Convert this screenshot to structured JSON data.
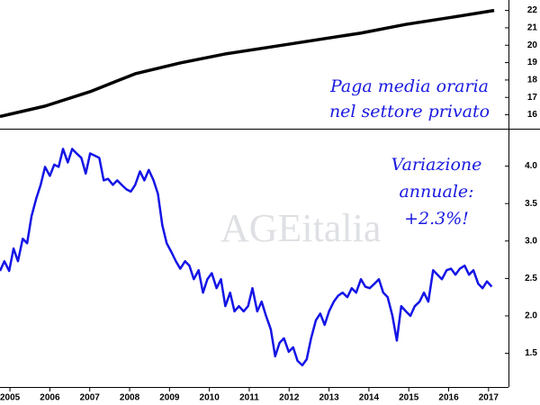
{
  "chart_data": [
    {
      "type": "line",
      "annotation": [
        "Paga media oraria",
        "nel settore privato"
      ],
      "xlim": [
        2004.75,
        2017.5
      ],
      "ylim": [
        15.2,
        22.6
      ],
      "yticks": [
        16,
        17,
        18,
        19,
        20,
        21,
        22
      ],
      "series": [
        {
          "color": "#000000",
          "x": [
            2004.75,
            2005.88,
            2007.01,
            2008.14,
            2009.27,
            2010.4,
            2011.54,
            2012.67,
            2013.8,
            2014.93,
            2016.06,
            2017.14
          ],
          "values": [
            15.9,
            16.5,
            17.33,
            18.36,
            18.98,
            19.5,
            19.9,
            20.3,
            20.7,
            21.2,
            21.6,
            22.0
          ]
        }
      ]
    },
    {
      "type": "line",
      "annotation": [
        "Variazione",
        "annuale:",
        "+2.3%!"
      ],
      "watermark": "AGEitalia",
      "xlim": [
        2004.75,
        2017.5
      ],
      "xticks": [
        2005,
        2006,
        2007,
        2008,
        2009,
        2010,
        2011,
        2012,
        2013,
        2014,
        2015,
        2016,
        2017
      ],
      "ylim": [
        1.05,
        4.5
      ],
      "yticks": [
        1.5,
        {
          "value": 2,
          "label": "2.0"
        },
        2.5,
        {
          "value": 3,
          "label": "3.0"
        },
        3.5,
        {
          "value": 4,
          "label": "4.0"
        }
      ],
      "series": [
        {
          "color": "#1414e6",
          "x": [
            2004.75,
            2004.86,
            2004.98,
            2005.09,
            2005.2,
            2005.32,
            2005.43,
            2005.54,
            2005.66,
            2005.77,
            2005.88,
            2006.0,
            2006.11,
            2006.22,
            2006.33,
            2006.45,
            2006.56,
            2006.67,
            2006.79,
            2006.9,
            2007.01,
            2007.13,
            2007.24,
            2007.35,
            2007.46,
            2007.58,
            2007.69,
            2007.8,
            2007.92,
            2008.03,
            2008.14,
            2008.26,
            2008.37,
            2008.48,
            2008.6,
            2008.71,
            2008.82,
            2008.93,
            2009.05,
            2009.16,
            2009.27,
            2009.39,
            2009.5,
            2009.61,
            2009.73,
            2009.84,
            2009.95,
            2010.06,
            2010.18,
            2010.29,
            2010.4,
            2010.52,
            2010.63,
            2010.74,
            2010.86,
            2010.97,
            2011.08,
            2011.2,
            2011.31,
            2011.42,
            2011.54,
            2011.65,
            2011.76,
            2011.87,
            2011.99,
            2012.1,
            2012.21,
            2012.33,
            2012.44,
            2012.55,
            2012.67,
            2012.78,
            2012.89,
            2013.0,
            2013.12,
            2013.23,
            2013.34,
            2013.46,
            2013.57,
            2013.68,
            2013.8,
            2013.91,
            2014.02,
            2014.14,
            2014.25,
            2014.36,
            2014.47,
            2014.59,
            2014.7,
            2014.81,
            2014.93,
            2015.04,
            2015.15,
            2015.27,
            2015.38,
            2015.49,
            2015.61,
            2015.72,
            2015.83,
            2015.95,
            2016.06,
            2016.17,
            2016.28,
            2016.4,
            2016.51,
            2016.62,
            2016.74,
            2016.85,
            2016.96,
            2017.08
          ],
          "values": [
            2.6,
            2.73,
            2.6,
            2.9,
            2.73,
            3.03,
            2.97,
            3.33,
            3.57,
            3.75,
            3.99,
            3.87,
            4.02,
            3.99,
            4.23,
            4.05,
            4.23,
            4.17,
            4.11,
            3.9,
            4.17,
            4.14,
            4.11,
            3.81,
            3.83,
            3.75,
            3.81,
            3.75,
            3.69,
            3.66,
            3.75,
            3.93,
            3.81,
            3.95,
            3.81,
            3.63,
            3.21,
            2.97,
            2.85,
            2.73,
            2.63,
            2.73,
            2.67,
            2.49,
            2.61,
            2.31,
            2.49,
            2.57,
            2.37,
            2.49,
            2.13,
            2.31,
            2.06,
            2.13,
            2.06,
            2.13,
            2.37,
            2.06,
            2.19,
            2.0,
            1.82,
            1.46,
            1.64,
            1.7,
            1.52,
            1.58,
            1.4,
            1.34,
            1.42,
            1.7,
            1.94,
            2.03,
            1.88,
            2.06,
            2.19,
            2.27,
            2.31,
            2.25,
            2.37,
            2.31,
            2.49,
            2.39,
            2.37,
            2.43,
            2.49,
            2.31,
            2.25,
            2.0,
            1.67,
            2.13,
            2.06,
            2.0,
            2.13,
            2.19,
            2.31,
            2.19,
            2.61,
            2.55,
            2.49,
            2.61,
            2.63,
            2.55,
            2.63,
            2.67,
            2.55,
            2.61,
            2.43,
            2.37,
            2.46,
            2.39
          ]
        }
      ]
    }
  ]
}
